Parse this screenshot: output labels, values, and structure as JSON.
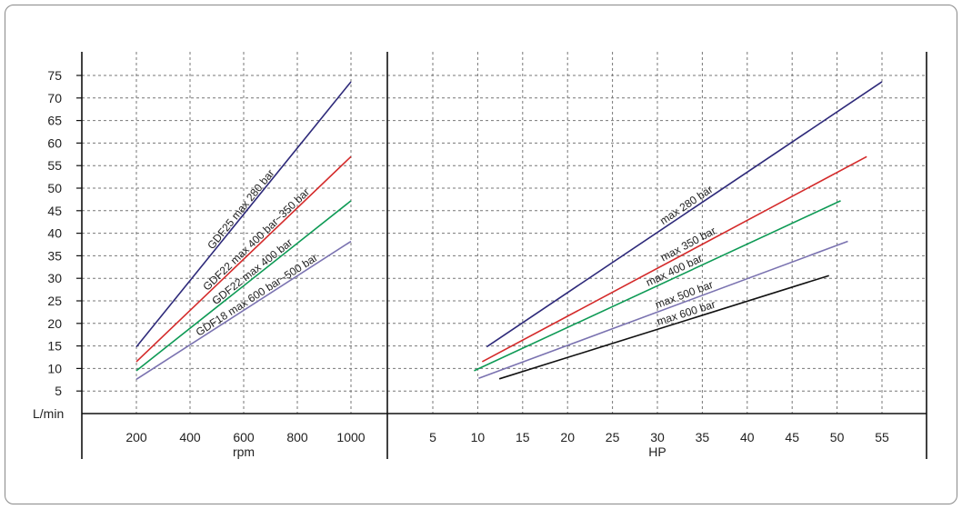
{
  "chart_data": [
    {
      "type": "line",
      "ylabel": "L/min",
      "xlabel": "rpm",
      "x_ticks": [
        200,
        400,
        600,
        800,
        1000
      ],
      "y_ticks": [
        5,
        10,
        15,
        20,
        25,
        30,
        35,
        40,
        45,
        50,
        55,
        60,
        65,
        70,
        75
      ],
      "xlim": [
        0,
        1200
      ],
      "ylim": [
        -5,
        80
      ],
      "grid": true,
      "series": [
        {
          "name": "GDF25 max 280 bar",
          "color": "#2e2a7a",
          "x": [
            200,
            1000
          ],
          "y": [
            14.8,
            73.6
          ]
        },
        {
          "name": "GDF22 max 400 bar~350 bar",
          "color": "#d42a2a",
          "x": [
            200,
            1000
          ],
          "y": [
            11.5,
            57.0
          ]
        },
        {
          "name": "GDF22 max 400 bar",
          "color": "#0e9a55",
          "x": [
            200,
            1000
          ],
          "y": [
            9.5,
            47.2
          ]
        },
        {
          "name": "GDF18 max 600 bar~500 bar",
          "color": "#7a72b0",
          "x": [
            200,
            1000
          ],
          "y": [
            7.6,
            38.2
          ]
        }
      ]
    },
    {
      "type": "line",
      "xlabel": "HP",
      "x_ticks": [
        5,
        10,
        15,
        20,
        25,
        30,
        35,
        40,
        45,
        50,
        55
      ],
      "xlim": [
        0,
        60
      ],
      "ylim": [
        -5,
        80
      ],
      "grid": true,
      "series": [
        {
          "name": "max 280 bar",
          "color": "#2e2a7a",
          "x": [
            11,
            55
          ],
          "y": [
            14.8,
            73.6
          ]
        },
        {
          "name": "max 350 bar",
          "color": "#d42a2a",
          "x": [
            10.5,
            53.3
          ],
          "y": [
            11.5,
            57.0
          ]
        },
        {
          "name": "max 400 bar",
          "color": "#0e9a55",
          "x": [
            9.6,
            50.4
          ],
          "y": [
            9.5,
            47.2
          ]
        },
        {
          "name": "max 500 bar",
          "color": "#7a72b0",
          "x": [
            10.1,
            51.2
          ],
          "y": [
            7.8,
            38.2
          ]
        },
        {
          "name": "max 600 bar",
          "color": "#111111",
          "x": [
            12.4,
            49.1
          ],
          "y": [
            7.7,
            30.6
          ]
        }
      ]
    }
  ]
}
